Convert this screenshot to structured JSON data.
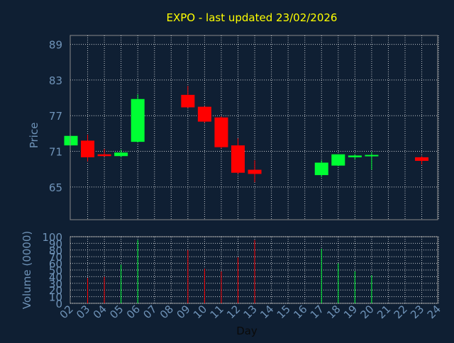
{
  "chart_data": {
    "type": "candlestick",
    "title": "EXPO - last updated 23/02/2026",
    "xlabel": "Day",
    "ylabel": "Price",
    "volume_label": "Volume (0000)",
    "price_ticks": [
      65,
      71,
      77,
      83,
      89
    ],
    "volume_ticks": [
      0,
      10,
      20,
      30,
      40,
      50,
      60,
      70,
      80,
      90,
      100
    ],
    "x_ticks": [
      "02",
      "03",
      "04",
      "05",
      "06",
      "07",
      "08",
      "09",
      "10",
      "11",
      "12",
      "13",
      "14",
      "15",
      "16",
      "17",
      "18",
      "19",
      "20",
      "21",
      "22",
      "23",
      "24"
    ],
    "ylim": [
      59.5,
      90.5
    ],
    "volume_ylim": [
      0,
      100
    ],
    "grid": true,
    "colors": {
      "background": "#0f1f33",
      "up": "#00ff33",
      "down": "#ff0000",
      "title": "#ffff00",
      "axis_text": "#6f93b8",
      "frame": "#8a8a8a",
      "grid": "#ffffff"
    },
    "candles": [
      {
        "day": "02",
        "open": 72.0,
        "high": 73.6,
        "low": 72.0,
        "close": 73.6,
        "volume": 0
      },
      {
        "day": "03",
        "open": 72.8,
        "high": 73.8,
        "low": 69.3,
        "close": 70.0,
        "volume": 38
      },
      {
        "day": "04",
        "open": 70.5,
        "high": 71.4,
        "low": 70.1,
        "close": 70.2,
        "volume": 40
      },
      {
        "day": "05",
        "open": 70.2,
        "high": 71.3,
        "low": 70.0,
        "close": 70.8,
        "volume": 58
      },
      {
        "day": "06",
        "open": 72.6,
        "high": 80.6,
        "low": 72.5,
        "close": 79.8,
        "volume": 95
      },
      {
        "day": "09",
        "open": 80.5,
        "high": 82.0,
        "low": 78.3,
        "close": 78.4,
        "volume": 80
      },
      {
        "day": "10",
        "open": 78.5,
        "high": 78.6,
        "low": 75.8,
        "close": 76.0,
        "volume": 52
      },
      {
        "day": "11",
        "open": 76.7,
        "high": 76.9,
        "low": 71.5,
        "close": 71.7,
        "volume": 48
      },
      {
        "day": "12",
        "open": 72.0,
        "high": 73.2,
        "low": 67.2,
        "close": 67.4,
        "volume": 69
      },
      {
        "day": "13",
        "open": 67.9,
        "high": 69.5,
        "low": 65.8,
        "close": 67.2,
        "volume": 95
      },
      {
        "day": "17",
        "open": 67.0,
        "high": 69.5,
        "low": 66.7,
        "close": 69.1,
        "volume": 82
      },
      {
        "day": "18",
        "open": 68.6,
        "high": 70.5,
        "low": 68.5,
        "close": 70.5,
        "volume": 60
      },
      {
        "day": "19",
        "open": 70.0,
        "high": 70.5,
        "low": 69.6,
        "close": 70.3,
        "volume": 48
      },
      {
        "day": "20",
        "open": 70.2,
        "high": 70.9,
        "low": 67.9,
        "close": 70.4,
        "volume": 42
      },
      {
        "day": "23",
        "open": 70.0,
        "high": 70.2,
        "low": 68.8,
        "close": 69.4,
        "volume": 0
      }
    ]
  }
}
